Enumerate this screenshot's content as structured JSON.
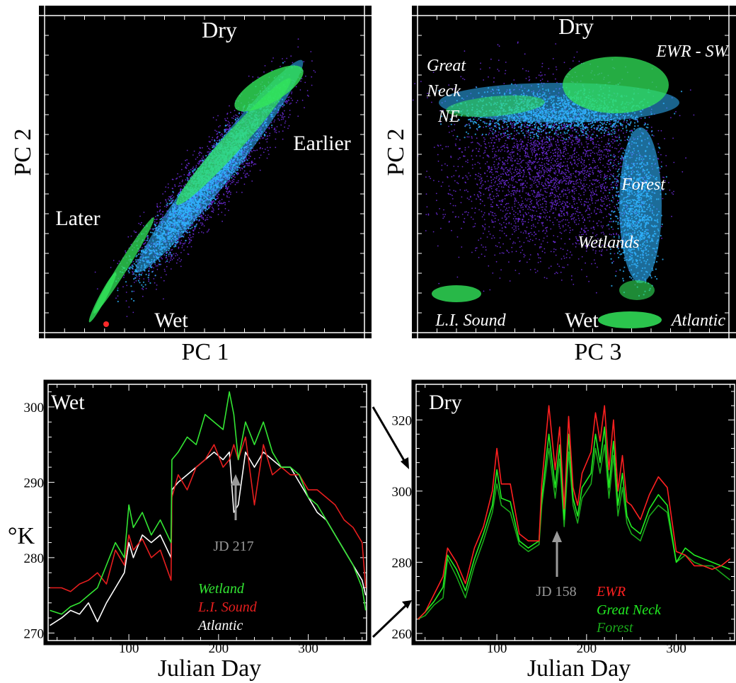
{
  "colors": {
    "panel_bg": "#000000",
    "frame": "#ffffff",
    "wetland": "#33e633",
    "li_sound": "#e61e1e",
    "atlantic": "#ffffff",
    "ewr": "#ff2020",
    "great_neck": "#22ee22",
    "forest": "#1aa81a",
    "mean_cyan": "#4fd8ff",
    "density_low": "#6a2bd8",
    "density_mid": "#2fb4ff",
    "density_high": "#32e65a",
    "annotation_gray": "#9a9a9a"
  },
  "chart_data": [
    {
      "type": "scatter",
      "subtype": "density",
      "xlabel": "PC 1",
      "ylabel": "PC 2",
      "annotations": {
        "top": "Dry",
        "bottom": "Wet",
        "right": "Earlier",
        "left": "Later"
      }
    },
    {
      "type": "scatter",
      "subtype": "density",
      "xlabel": "PC 3",
      "ylabel": "PC 2",
      "annotations": {
        "top": "Dry",
        "bottom": "Wet",
        "ewr": "EWR - SW",
        "great_neck": [
          "Great",
          "Neck",
          "NE"
        ],
        "forest": "Forest",
        "wetlands": "Wetlands",
        "li_sound": "L.I. Sound",
        "atlantic": "Atlantic"
      }
    },
    {
      "type": "line",
      "title": "Wet",
      "xlabel": "Julian Day",
      "ylabel": "°K",
      "xlim": [
        10,
        365
      ],
      "ylim": [
        269,
        303
      ],
      "xticks": [
        100,
        200,
        300
      ],
      "yticks": [
        270,
        280,
        290,
        300
      ],
      "annotation": {
        "text": "JD 217",
        "x": 217
      },
      "series": [
        {
          "name": "Wetland",
          "color": "#33e633",
          "x": [
            12,
            25,
            35,
            45,
            55,
            65,
            75,
            85,
            95,
            100,
            105,
            115,
            125,
            135,
            147,
            148,
            155,
            165,
            175,
            185,
            195,
            205,
            212,
            217,
            222,
            230,
            240,
            250,
            260,
            270,
            280,
            290,
            300,
            310,
            320,
            330,
            340,
            350,
            360,
            364
          ],
          "y": [
            273,
            272.5,
            273.5,
            274,
            275,
            276,
            279,
            282,
            280,
            287,
            284,
            286,
            283,
            285,
            282,
            293,
            294,
            296,
            295,
            299,
            298,
            297,
            302,
            299,
            293,
            298,
            295,
            298,
            294,
            292,
            292,
            291,
            288,
            287,
            285,
            283,
            281,
            279,
            276,
            273
          ]
        },
        {
          "name": "L.I. Sound",
          "color": "#e61e1e",
          "x": [
            12,
            25,
            35,
            45,
            55,
            65,
            75,
            85,
            95,
            100,
            105,
            115,
            125,
            135,
            147,
            148,
            155,
            165,
            175,
            185,
            195,
            205,
            212,
            217,
            222,
            230,
            240,
            250,
            260,
            270,
            280,
            290,
            300,
            310,
            320,
            330,
            340,
            350,
            360,
            364
          ],
          "y": [
            276,
            276,
            275.5,
            276.5,
            277,
            278,
            276.5,
            281,
            279,
            283,
            281,
            282.5,
            280,
            281,
            277,
            288,
            291,
            289,
            292,
            293,
            295,
            292,
            293,
            295,
            293,
            296,
            287,
            295,
            291,
            292,
            291,
            291,
            289,
            289,
            288,
            287,
            285,
            284,
            282,
            276
          ]
        },
        {
          "name": "Atlantic",
          "color": "#ffffff",
          "x": [
            12,
            25,
            35,
            45,
            55,
            65,
            75,
            85,
            95,
            100,
            105,
            115,
            125,
            135,
            147,
            148,
            155,
            165,
            175,
            185,
            195,
            205,
            212,
            217,
            222,
            230,
            240,
            250,
            260,
            270,
            280,
            290,
            300,
            310,
            320,
            330,
            340,
            350,
            360,
            364
          ],
          "y": [
            271,
            272,
            273,
            272.5,
            274,
            271.5,
            274,
            276,
            278,
            282,
            280,
            283,
            282,
            283,
            280,
            289,
            290,
            291,
            292,
            293,
            294,
            293,
            294,
            286,
            287,
            294,
            292,
            294,
            293,
            292,
            292,
            290,
            288,
            286,
            285,
            283,
            281,
            279,
            277,
            275
          ]
        }
      ]
    },
    {
      "type": "line",
      "title": "Dry",
      "xlabel": "Julian Day",
      "ylabel": "",
      "xlim": [
        10,
        365
      ],
      "ylim": [
        258,
        330
      ],
      "xticks": [
        100,
        200,
        300
      ],
      "yticks": [
        260,
        280,
        300,
        320
      ],
      "annotation": {
        "text": "JD 158",
        "x": 158
      },
      "series": [
        {
          "name": "EWR",
          "color": "#ff2020",
          "x": [
            12,
            20,
            30,
            40,
            45,
            55,
            65,
            75,
            85,
            95,
            100,
            105,
            115,
            125,
            135,
            147,
            150,
            158,
            165,
            170,
            175,
            180,
            185,
            190,
            195,
            205,
            210,
            215,
            220,
            225,
            230,
            235,
            240,
            245,
            250,
            260,
            270,
            280,
            290,
            300,
            310,
            320,
            330,
            340,
            350,
            360
          ],
          "y": [
            264,
            266,
            271,
            276,
            284,
            280,
            274,
            284,
            290,
            300,
            312,
            302,
            302,
            288,
            286,
            286,
            302,
            324,
            306,
            318,
            295,
            321,
            301,
            296,
            305,
            311,
            322,
            314,
            324,
            306,
            320,
            300,
            310,
            297,
            296,
            292,
            299,
            304,
            301,
            283,
            282,
            279,
            279,
            278,
            279,
            281
          ]
        },
        {
          "name": "Great Neck",
          "color": "#22ee22",
          "x": [
            12,
            20,
            30,
            40,
            45,
            55,
            65,
            75,
            85,
            95,
            100,
            105,
            115,
            125,
            135,
            147,
            150,
            158,
            165,
            170,
            175,
            180,
            185,
            190,
            195,
            205,
            210,
            215,
            220,
            225,
            230,
            235,
            240,
            245,
            250,
            260,
            270,
            280,
            290,
            300,
            310,
            320,
            330,
            340,
            350,
            360
          ],
          "y": [
            264,
            266,
            269,
            273,
            282,
            278,
            272,
            281,
            288,
            296,
            306,
            298,
            297,
            286,
            284,
            286,
            298,
            316,
            301,
            313,
            292,
            316,
            298,
            293,
            301,
            305,
            316,
            308,
            318,
            301,
            314,
            296,
            305,
            293,
            290,
            288,
            295,
            299,
            296,
            280,
            284,
            282,
            281,
            280,
            279,
            278
          ]
        },
        {
          "name": "Forest",
          "color": "#1aa81a",
          "x": [
            12,
            20,
            30,
            40,
            45,
            55,
            65,
            75,
            85,
            95,
            100,
            105,
            115,
            125,
            135,
            147,
            150,
            158,
            165,
            170,
            175,
            180,
            185,
            190,
            195,
            205,
            210,
            215,
            220,
            225,
            230,
            235,
            240,
            245,
            250,
            260,
            270,
            280,
            290,
            300,
            310,
            320,
            330,
            340,
            350,
            360
          ],
          "y": [
            264,
            265,
            268,
            270,
            281,
            276,
            270,
            279,
            286,
            294,
            302,
            296,
            294,
            285,
            283,
            285,
            296,
            312,
            298,
            309,
            290,
            311,
            296,
            291,
            298,
            302,
            312,
            305,
            313,
            298,
            310,
            293,
            301,
            291,
            288,
            286,
            293,
            296,
            294,
            280,
            282,
            280,
            279,
            279,
            277,
            275
          ]
        }
      ]
    }
  ]
}
